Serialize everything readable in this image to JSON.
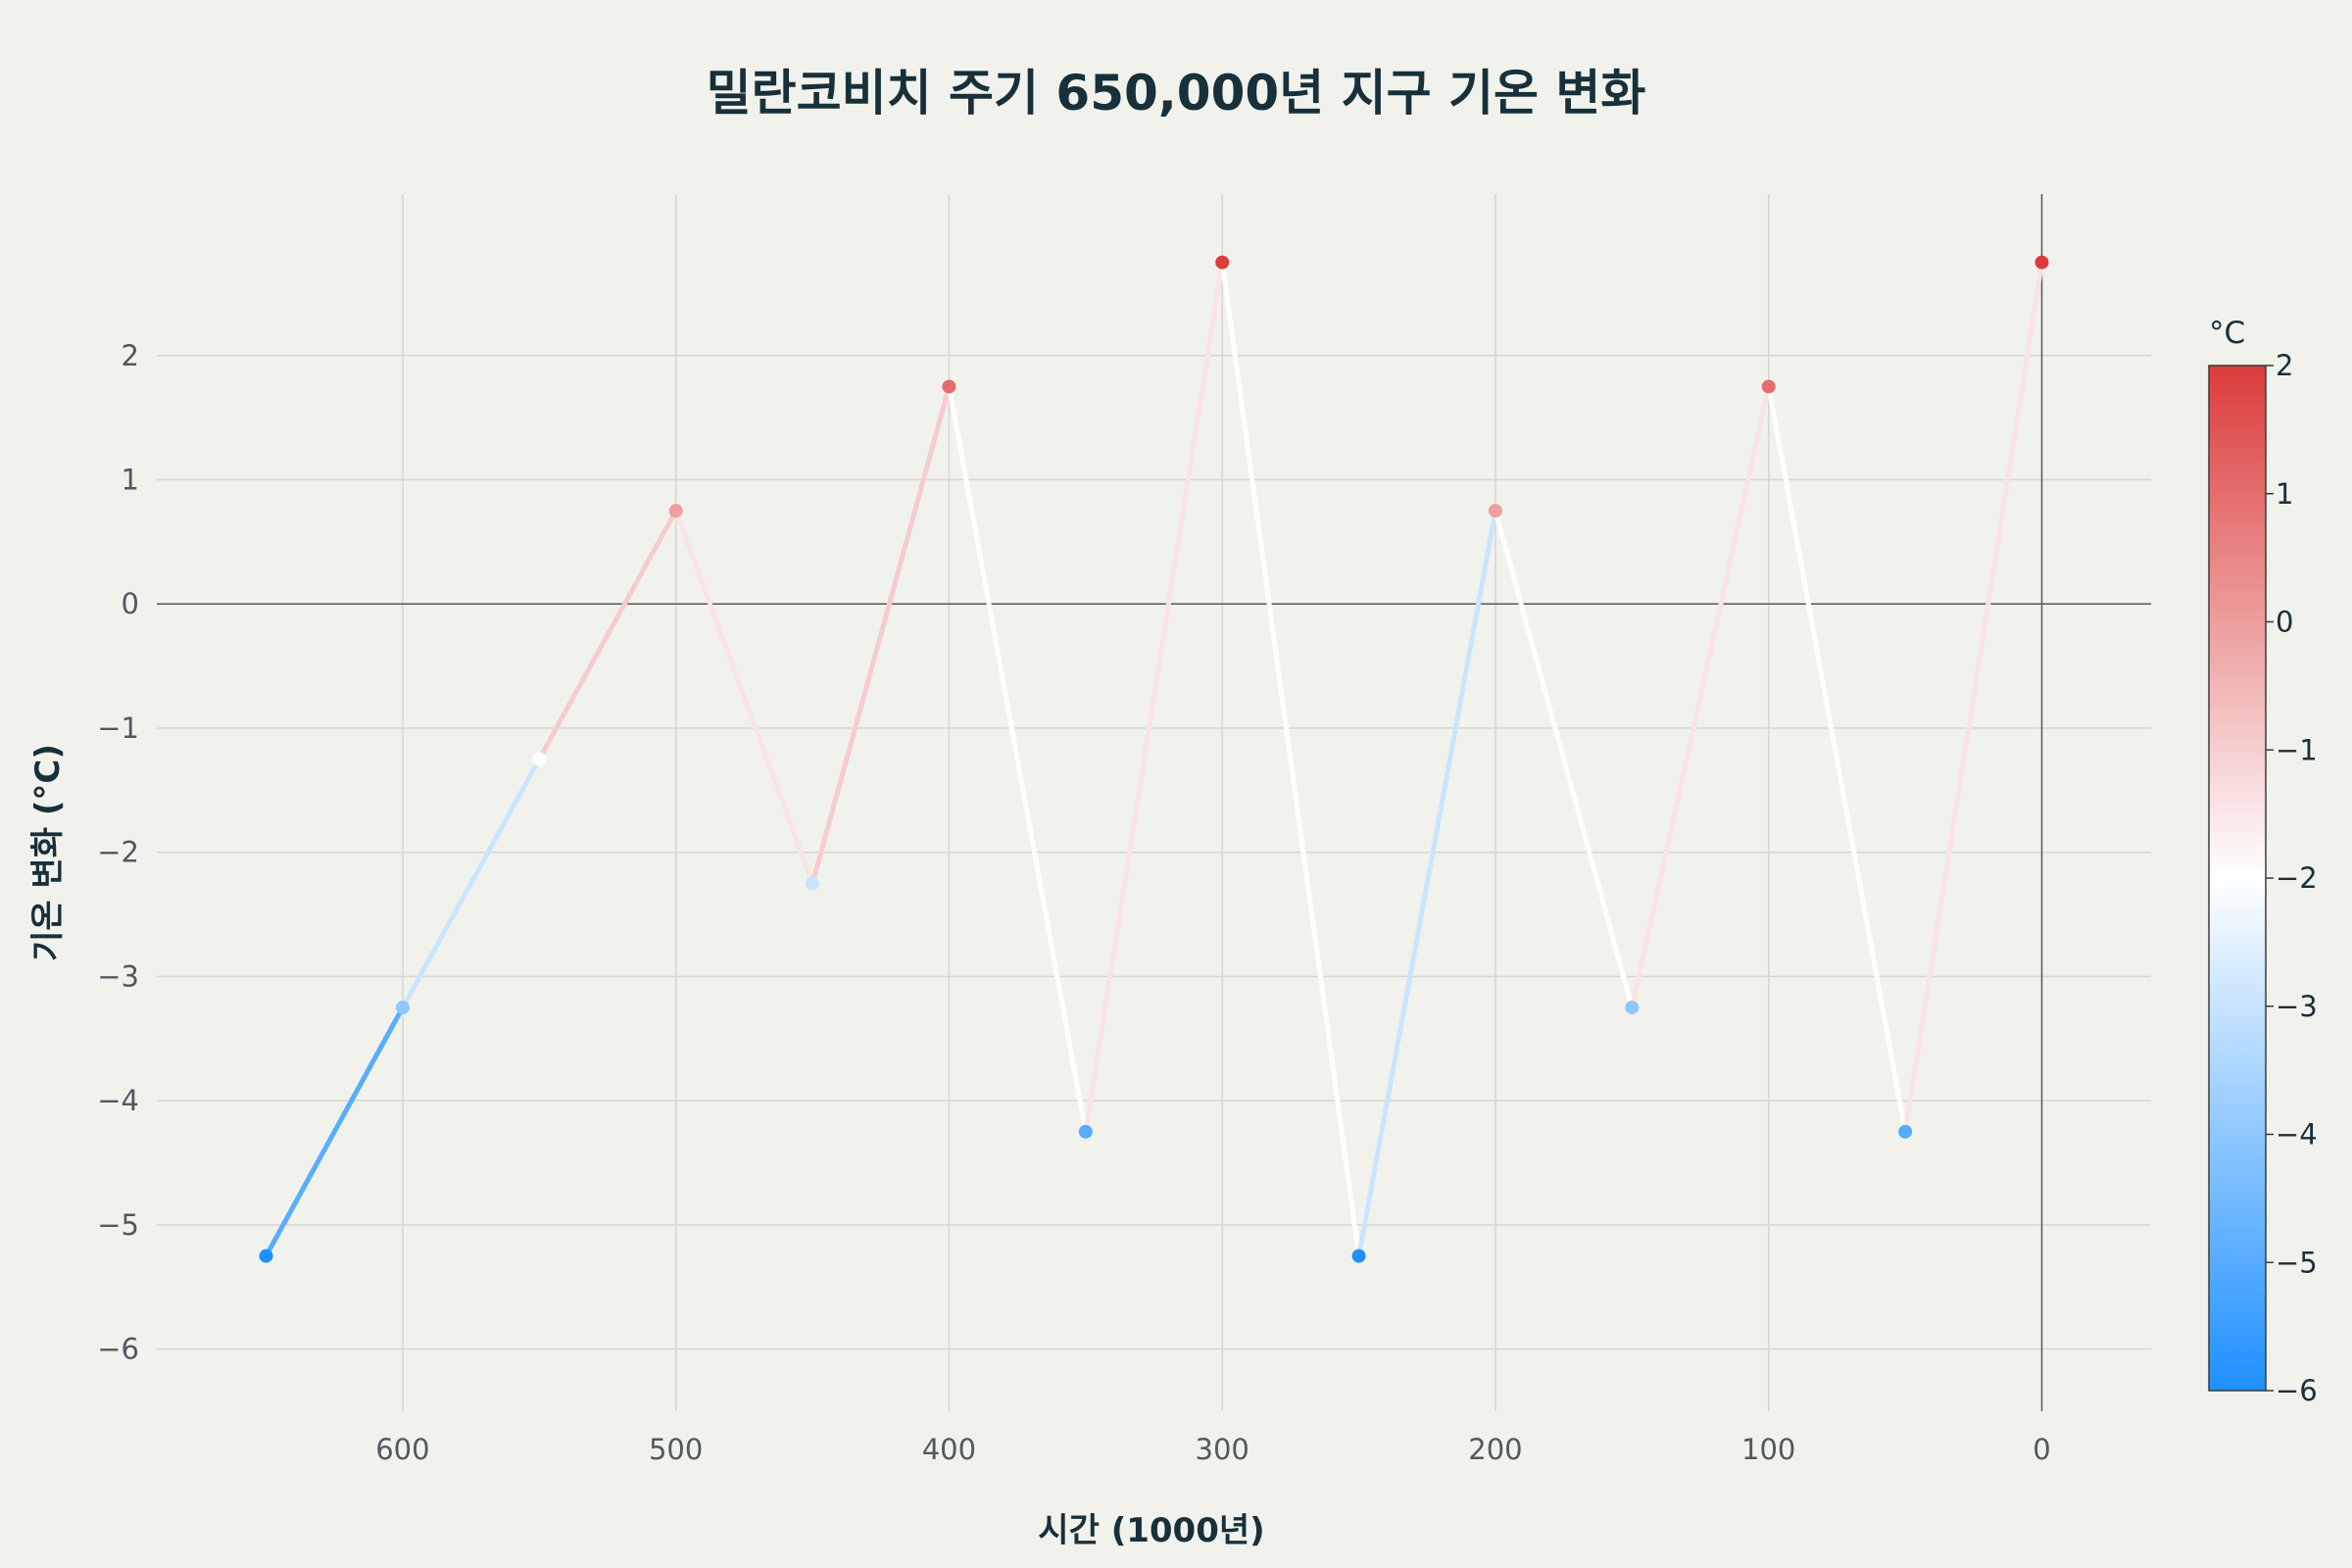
{
  "chart_data": {
    "type": "line",
    "title": "밀란코비치 주기 650,000년 지구 기온 변화",
    "xlabel": "시간 (1000년)",
    "ylabel": "기온 변화 (°C)",
    "x_reversed": true,
    "xlim": [
      690,
      -40
    ],
    "ylim": [
      -6.5,
      3.3
    ],
    "x_ticks": [
      600,
      500,
      400,
      300,
      200,
      100,
      0
    ],
    "y_ticks": [
      -6,
      -5,
      -4,
      -3,
      -2,
      -1,
      0,
      1,
      2
    ],
    "grid": true,
    "zero_lines": true,
    "series": [
      {
        "x": [
          650,
          600,
          550,
          500,
          450,
          400,
          350,
          300,
          250,
          200,
          150,
          100,
          50,
          0
        ],
        "y": [
          -5.25,
          -3.25,
          -1.25,
          0.75,
          -2.25,
          1.75,
          -4.25,
          2.75,
          -5.25,
          0.75,
          -3.25,
          1.75,
          -4.25,
          2.75
        ]
      }
    ],
    "colorbar": {
      "title": "°C",
      "range": [
        -6,
        2
      ],
      "ticks": [
        2,
        1,
        0,
        -1,
        -2,
        -3,
        -4,
        -5,
        -6
      ],
      "colorscale": [
        "#1e90ff",
        "#ffffff",
        "#dc3c3c"
      ]
    }
  }
}
